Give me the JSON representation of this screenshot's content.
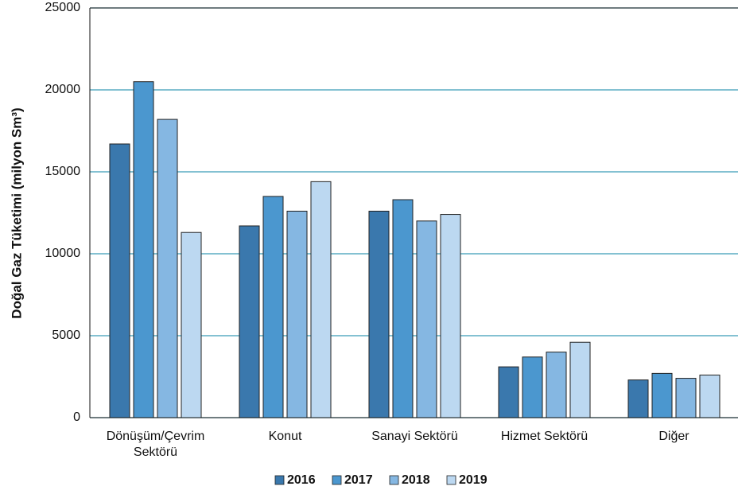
{
  "chart_data": {
    "type": "bar",
    "y_label": "Doğal Gaz Tüketimi (milyon Sm³)",
    "categories": [
      "Dönüşüm/Çevrim\nSektörü",
      "Konut",
      "Sanayi Sektörü",
      "Hizmet Sektörü",
      "Diğer"
    ],
    "series": [
      {
        "name": "2016",
        "color": "#3a78ad",
        "values": [
          16700,
          11700,
          12600,
          3100,
          2300
        ]
      },
      {
        "name": "2017",
        "color": "#4b97cf",
        "values": [
          20500,
          13500,
          13300,
          3700,
          2700
        ]
      },
      {
        "name": "2018",
        "color": "#85b7e2",
        "values": [
          18200,
          12600,
          12000,
          4000,
          2400
        ]
      },
      {
        "name": "2019",
        "color": "#bcd8f1",
        "values": [
          11300,
          14400,
          12400,
          4600,
          2600
        ]
      }
    ],
    "ylim": [
      0,
      25000
    ],
    "yticks": [
      0,
      5000,
      10000,
      15000,
      20000,
      25000
    ],
    "grid": true,
    "legend": "bottom"
  }
}
